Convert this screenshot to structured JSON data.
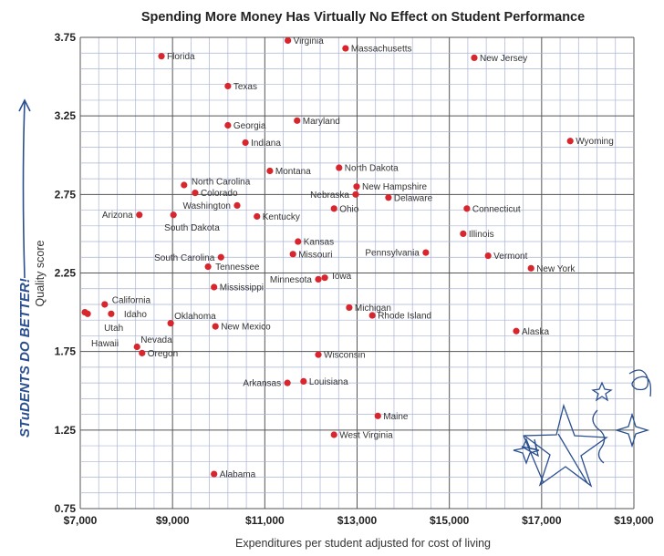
{
  "chart_data": {
    "type": "scatter",
    "title": "Spending More Money Has Virtually No Effect on Student Performance",
    "xlabel": "Expenditures per student adjusted for cost of living",
    "ylabel": "Quality score",
    "side_annotation": "STuDENTS DO BETTER!",
    "xlim": [
      7000,
      19000
    ],
    "ylim": [
      0.75,
      3.75
    ],
    "xticks": [
      "$7,000",
      "$9,000",
      "$11,000",
      "$13,000",
      "$15,000",
      "$17,000",
      "$19,000"
    ],
    "yticks": [
      "0.75",
      "1.25",
      "1.75",
      "2.25",
      "2.75",
      "3.25",
      "3.75"
    ],
    "grid": true,
    "point_color": "#d7262d",
    "points": [
      {
        "name": "Virginia",
        "x": 11500,
        "y": 3.73
      },
      {
        "name": "Massachusetts",
        "x": 12750,
        "y": 3.68
      },
      {
        "name": "New Jersey",
        "x": 15540,
        "y": 3.62
      },
      {
        "name": "Florida",
        "x": 8760,
        "y": 3.63
      },
      {
        "name": "Texas",
        "x": 10200,
        "y": 3.44
      },
      {
        "name": "Georgia",
        "x": 10200,
        "y": 3.19
      },
      {
        "name": "Maryland",
        "x": 11700,
        "y": 3.22
      },
      {
        "name": "Indiana",
        "x": 10580,
        "y": 3.08
      },
      {
        "name": "Wyoming",
        "x": 17620,
        "y": 3.09
      },
      {
        "name": "Montana",
        "x": 11110,
        "y": 2.9
      },
      {
        "name": "North Dakota",
        "x": 12610,
        "y": 2.92
      },
      {
        "name": "North Carolina",
        "x": 9250,
        "y": 2.81
      },
      {
        "name": "Colorado",
        "x": 9490,
        "y": 2.76
      },
      {
        "name": "New Hampshire",
        "x": 12990,
        "y": 2.8
      },
      {
        "name": "Nebraska",
        "x": 12970,
        "y": 2.75
      },
      {
        "name": "Delaware",
        "x": 13680,
        "y": 2.73
      },
      {
        "name": "Washington",
        "x": 10400,
        "y": 2.68
      },
      {
        "name": "Ohio",
        "x": 12500,
        "y": 2.66
      },
      {
        "name": "Connecticut",
        "x": 15380,
        "y": 2.66
      },
      {
        "name": "Arizona",
        "x": 8280,
        "y": 2.62
      },
      {
        "name": "South Dakota",
        "x": 9020,
        "y": 2.62
      },
      {
        "name": "Kentucky",
        "x": 10830,
        "y": 2.61
      },
      {
        "name": "Illinois",
        "x": 15300,
        "y": 2.5
      },
      {
        "name": "Kansas",
        "x": 11720,
        "y": 2.45
      },
      {
        "name": "Pennsylvania",
        "x": 14490,
        "y": 2.38
      },
      {
        "name": "Missouri",
        "x": 11610,
        "y": 2.37
      },
      {
        "name": "Vermont",
        "x": 15840,
        "y": 2.36
      },
      {
        "name": "South Carolina",
        "x": 10050,
        "y": 2.35
      },
      {
        "name": "Tennessee",
        "x": 9770,
        "y": 2.29
      },
      {
        "name": "New York",
        "x": 16770,
        "y": 2.28
      },
      {
        "name": "Iowa",
        "x": 12300,
        "y": 2.22
      },
      {
        "name": "Minnesota",
        "x": 12160,
        "y": 2.21
      },
      {
        "name": "Mississippi",
        "x": 9900,
        "y": 2.16
      },
      {
        "name": "California",
        "x": 7530,
        "y": 2.05
      },
      {
        "name": "Michigan",
        "x": 12830,
        "y": 2.03
      },
      {
        "name": "Idaho",
        "x": 7670,
        "y": 1.99
      },
      {
        "name": "Rhode Island",
        "x": 13330,
        "y": 1.98
      },
      {
        "name": "Utah",
        "x": 7160,
        "y": 1.99
      },
      {
        "name": "Hawaii",
        "x": 7100,
        "y": 2.0
      },
      {
        "name": "Oklahoma",
        "x": 8960,
        "y": 1.93
      },
      {
        "name": "New Mexico",
        "x": 9930,
        "y": 1.91
      },
      {
        "name": "Alaska",
        "x": 16450,
        "y": 1.88
      },
      {
        "name": "Nevada",
        "x": 8230,
        "y": 1.78
      },
      {
        "name": "Oregon",
        "x": 8340,
        "y": 1.74
      },
      {
        "name": "Wisconsin",
        "x": 12160,
        "y": 1.73
      },
      {
        "name": "Louisiana",
        "x": 11840,
        "y": 1.56
      },
      {
        "name": "Arkansas",
        "x": 11490,
        "y": 1.55
      },
      {
        "name": "Maine",
        "x": 13450,
        "y": 1.34
      },
      {
        "name": "West Virginia",
        "x": 12500,
        "y": 1.22
      },
      {
        "name": "Alabama",
        "x": 9900,
        "y": 0.97
      }
    ]
  }
}
